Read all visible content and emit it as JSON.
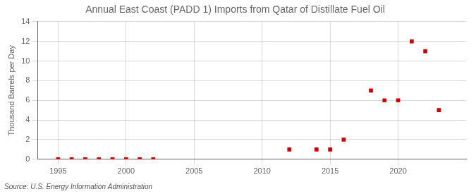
{
  "chart_data": {
    "type": "scatter",
    "title": "Annual East Coast (PADD 1) Imports from Qatar of Distillate Fuel Oil",
    "ylabel": "Thousand Barrels per Day",
    "annotations": [
      "Source: U.S. Energy Information Administration"
    ],
    "x": [
      1995,
      1996,
      1997,
      1998,
      1999,
      2000,
      2001,
      2002,
      2012,
      2014,
      2015,
      2016,
      2018,
      2019,
      2020,
      2021,
      2022,
      2023
    ],
    "values": [
      0,
      0,
      0,
      0,
      0,
      0,
      0,
      0,
      1,
      1,
      1,
      2,
      7,
      6,
      6,
      12,
      11,
      5
    ],
    "color": "#cc0000",
    "marker": "square",
    "xlim": [
      1993.5,
      2025
    ],
    "xticks": [
      1995,
      2000,
      2005,
      2010,
      2015,
      2020
    ],
    "ylim": [
      0,
      14
    ],
    "yticks": [
      0,
      2,
      4,
      6,
      8,
      10,
      12,
      14
    ],
    "grid": true
  }
}
